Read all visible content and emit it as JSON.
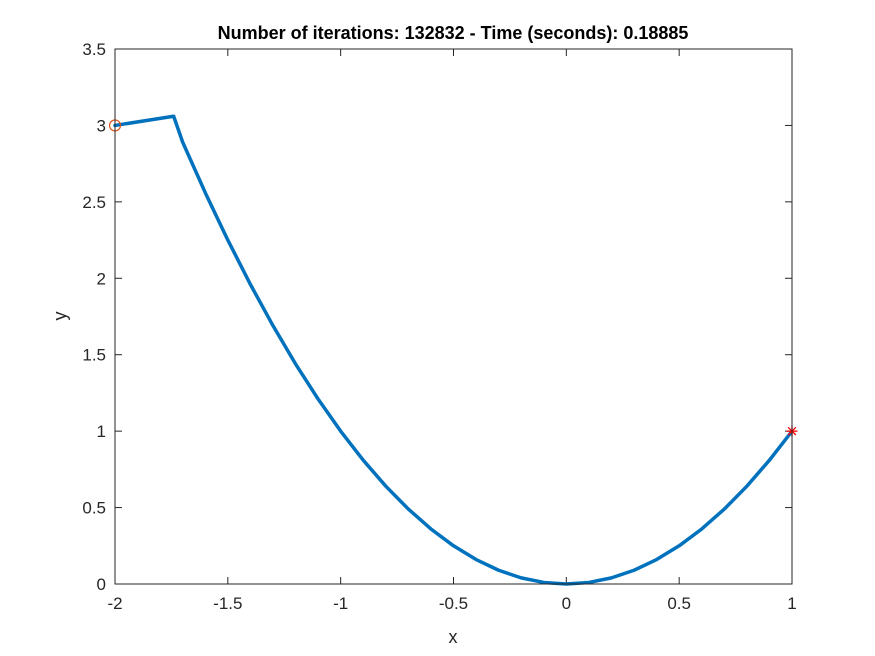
{
  "chart_data": {
    "type": "line",
    "title": "Number of iterations: 132832 - Time (seconds): 0.18885",
    "xlabel": "x",
    "ylabel": "y",
    "xlim": [
      -2,
      1
    ],
    "ylim": [
      0,
      3.5
    ],
    "xticks": [
      -2,
      -1.5,
      -1,
      -0.5,
      0,
      0.5,
      1
    ],
    "xtick_labels": [
      "-2",
      "-1.5",
      "-1",
      "-0.5",
      "0",
      "0.5",
      "1"
    ],
    "yticks": [
      0,
      0.5,
      1,
      1.5,
      2,
      2.5,
      3,
      3.5
    ],
    "ytick_labels": [
      "0",
      "0.5",
      "1",
      "1.5",
      "2",
      "2.5",
      "3",
      "3.5"
    ],
    "grid": false,
    "box": true,
    "series": [
      {
        "name": "path",
        "color": "#0072BD",
        "x": [
          -2,
          -1.74,
          -1.7,
          -1.6,
          -1.5,
          -1.4,
          -1.3,
          -1.2,
          -1.1,
          -1.0,
          -0.9,
          -0.8,
          -0.7,
          -0.6,
          -0.5,
          -0.4,
          -0.3,
          -0.2,
          -0.1,
          0,
          0.1,
          0.2,
          0.3,
          0.4,
          0.5,
          0.6,
          0.7,
          0.8,
          0.9,
          1.0
        ],
        "y": [
          3.0,
          3.06,
          2.89,
          2.56,
          2.25,
          1.96,
          1.69,
          1.44,
          1.21,
          1.0,
          0.81,
          0.64,
          0.49,
          0.36,
          0.25,
          0.16,
          0.09,
          0.04,
          0.01,
          0.0,
          0.01,
          0.04,
          0.09,
          0.16,
          0.25,
          0.36,
          0.49,
          0.64,
          0.81,
          1.0
        ]
      }
    ],
    "markers": [
      {
        "name": "start",
        "symbol": "circle",
        "x": -2,
        "y": 3,
        "color": "#D95319"
      },
      {
        "name": "end",
        "symbol": "asterisk",
        "x": 1,
        "y": 1,
        "color": "#FF0000"
      }
    ]
  }
}
